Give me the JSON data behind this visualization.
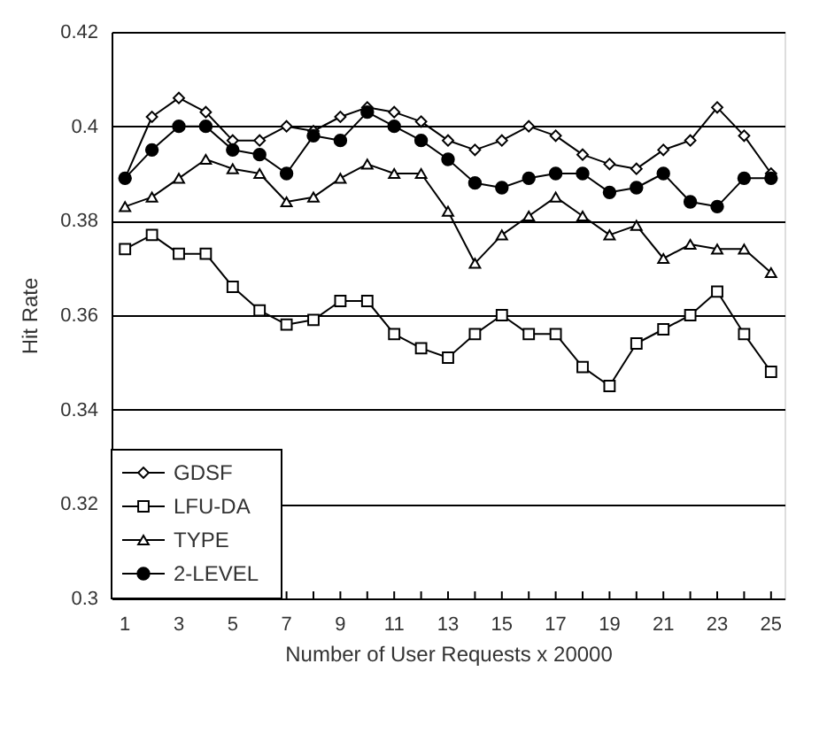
{
  "chart_data": {
    "type": "line",
    "xlabel": "Number of User Requests x 20000",
    "ylabel": "Hit Rate",
    "x": [
      1,
      2,
      3,
      4,
      5,
      6,
      7,
      8,
      9,
      10,
      11,
      12,
      13,
      14,
      15,
      16,
      17,
      18,
      19,
      20,
      21,
      22,
      23,
      24,
      25
    ],
    "xlim": [
      0.5,
      25.5
    ],
    "xticks": [
      1,
      {
        "value": 2,
        "label": null
      },
      3,
      {
        "value": 4,
        "label": null
      },
      5,
      {
        "value": 6,
        "label": null
      },
      7,
      {
        "value": 8,
        "label": null
      },
      9,
      {
        "value": 10,
        "label": null
      },
      11,
      {
        "value": 12,
        "label": null
      },
      13,
      {
        "value": 14,
        "label": null
      },
      15,
      {
        "value": 16,
        "label": null
      },
      17,
      {
        "value": 18,
        "label": null
      },
      19,
      {
        "value": 20,
        "label": null
      },
      21,
      {
        "value": 22,
        "label": null
      },
      23,
      {
        "value": 24,
        "label": null
      },
      25
    ],
    "ylim": [
      0.3,
      0.42
    ],
    "yticks": [
      0.3,
      0.32,
      0.34,
      0.36,
      0.38,
      0.4,
      0.42
    ],
    "grid": "y",
    "legend": "bottom left",
    "series": [
      {
        "name": "GDSF",
        "color": "#000000",
        "marker": "diamond",
        "values": [
          0.389,
          0.402,
          0.406,
          0.403,
          0.397,
          0.397,
          0.4,
          0.399,
          0.402,
          0.404,
          0.403,
          0.401,
          0.397,
          0.395,
          0.397,
          0.4,
          0.398,
          0.394,
          0.392,
          0.391,
          0.395,
          0.397,
          0.404,
          0.398,
          0.39
        ]
      },
      {
        "name": "LFU-DA",
        "color": "#000000",
        "marker": "square",
        "values": [
          0.374,
          0.377,
          0.373,
          0.373,
          0.366,
          0.361,
          0.358,
          0.359,
          0.363,
          0.363,
          0.356,
          0.353,
          0.351,
          0.356,
          0.36,
          0.356,
          0.356,
          0.349,
          0.345,
          0.354,
          0.357,
          0.36,
          0.365,
          0.356,
          0.348
        ]
      },
      {
        "name": "TYPE",
        "color": "#000000",
        "marker": "triangle",
        "values": [
          0.383,
          0.385,
          0.389,
          0.393,
          0.391,
          0.39,
          0.384,
          0.385,
          0.389,
          0.392,
          0.39,
          0.39,
          0.382,
          0.371,
          0.377,
          0.381,
          0.385,
          0.381,
          0.377,
          0.379,
          0.372,
          0.375,
          0.374,
          0.374,
          0.369
        ]
      },
      {
        "name": "2-LEVEL",
        "color": "#000000",
        "marker": "circle",
        "values": [
          0.389,
          0.395,
          0.4,
          0.4,
          0.395,
          0.394,
          0.39,
          0.398,
          0.397,
          0.403,
          0.4,
          0.397,
          0.393,
          0.388,
          0.387,
          0.389,
          0.39,
          0.39,
          0.386,
          0.387,
          0.39,
          0.384,
          0.383,
          0.389,
          0.389
        ]
      }
    ]
  }
}
